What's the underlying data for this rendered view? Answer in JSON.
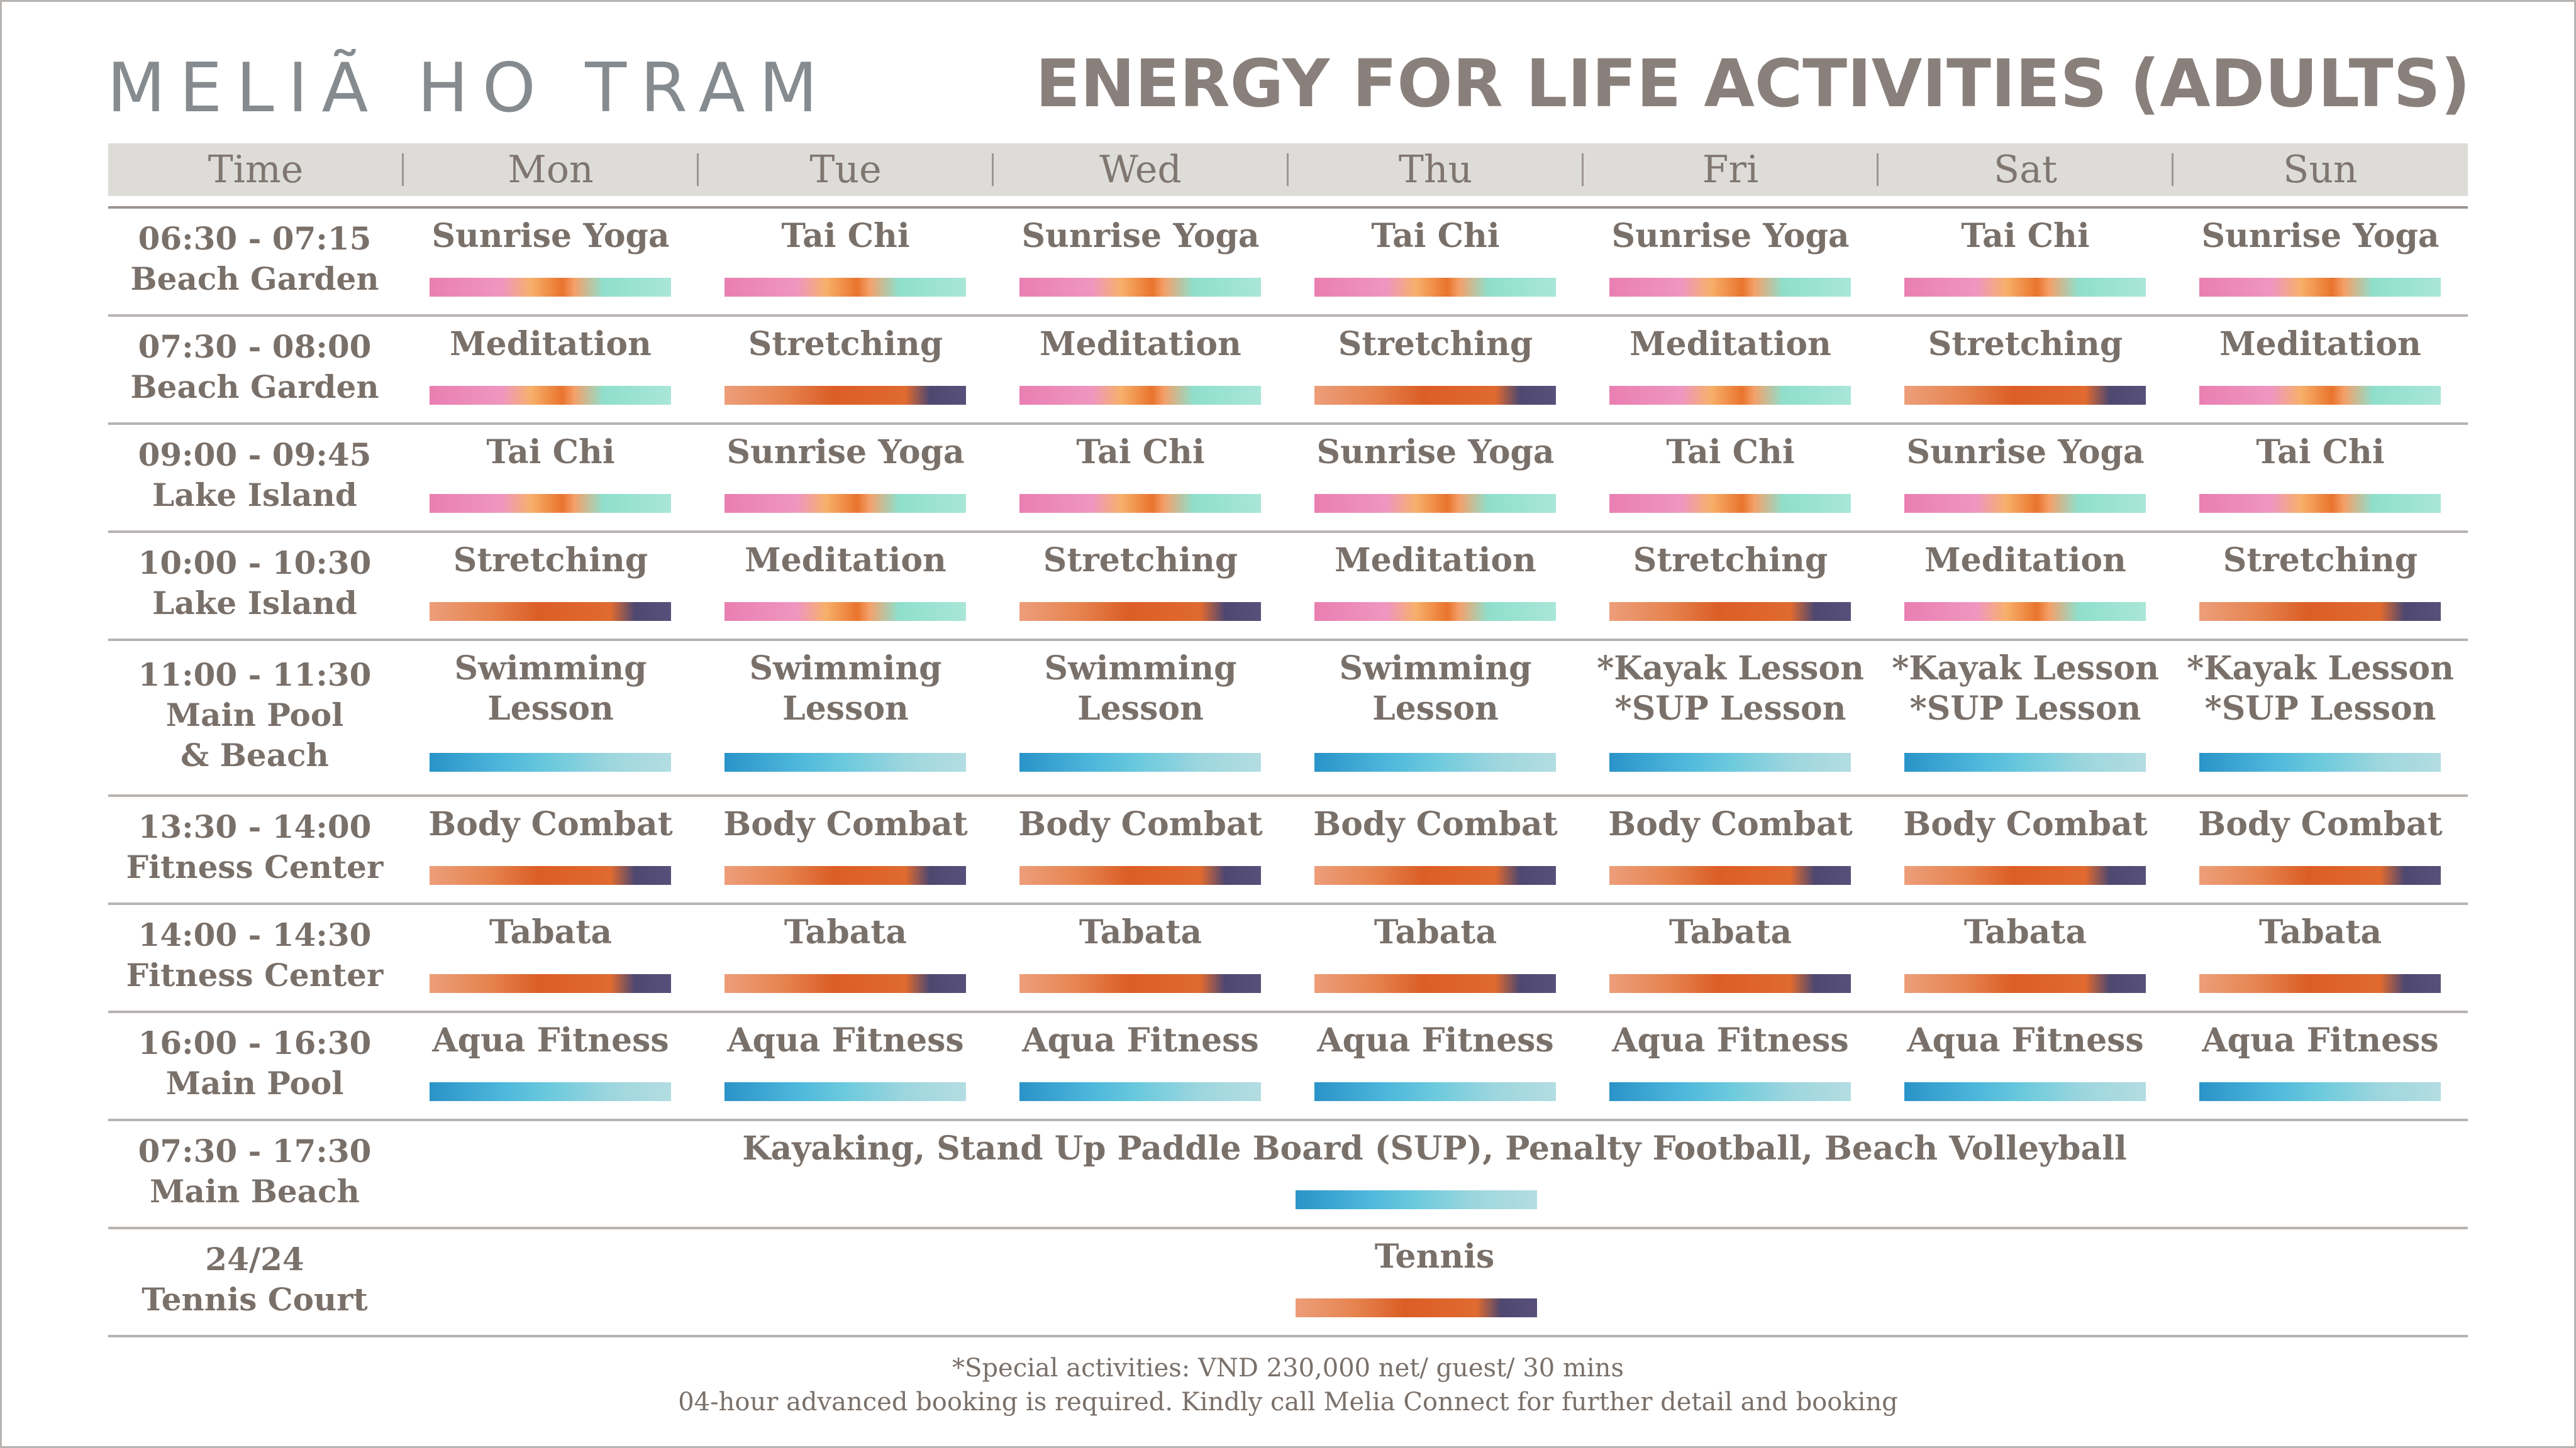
{
  "logo": "MELIÃ HO TRAM",
  "title": "ENERGY FOR LIFE ACTIVITIES (ADULTS)",
  "headers": [
    "Time",
    "Mon",
    "Tue",
    "Wed",
    "Thu",
    "Fri",
    "Sat",
    "Sun"
  ],
  "rows": [
    {
      "time": [
        "06:30 - 07:15",
        "Beach Garden"
      ],
      "cells": [
        [
          "Sunrise Yoga"
        ],
        [
          "Tai Chi"
        ],
        [
          "Sunrise Yoga"
        ],
        [
          "Tai Chi"
        ],
        [
          "Sunrise Yoga"
        ],
        [
          "Tai Chi"
        ],
        [
          "Sunrise Yoga"
        ]
      ],
      "bars": [
        "zen",
        "zen",
        "zen",
        "zen",
        "zen",
        "zen",
        "zen"
      ]
    },
    {
      "time": [
        "07:30 - 08:00",
        "Beach Garden"
      ],
      "cells": [
        [
          "Meditation"
        ],
        [
          "Stretching"
        ],
        [
          "Meditation"
        ],
        [
          "Stretching"
        ],
        [
          "Meditation"
        ],
        [
          "Stretching"
        ],
        [
          "Meditation"
        ]
      ],
      "bars": [
        "zen",
        "fire",
        "zen",
        "fire",
        "zen",
        "fire",
        "zen"
      ]
    },
    {
      "time": [
        "09:00 - 09:45",
        "Lake Island"
      ],
      "cells": [
        [
          "Tai Chi"
        ],
        [
          "Sunrise Yoga"
        ],
        [
          "Tai Chi"
        ],
        [
          "Sunrise Yoga"
        ],
        [
          "Tai Chi"
        ],
        [
          "Sunrise Yoga"
        ],
        [
          "Tai Chi"
        ]
      ],
      "bars": [
        "zen",
        "zen",
        "zen",
        "zen",
        "zen",
        "zen",
        "zen"
      ]
    },
    {
      "time": [
        "10:00 - 10:30",
        "Lake Island"
      ],
      "cells": [
        [
          "Stretching"
        ],
        [
          "Meditation"
        ],
        [
          "Stretching"
        ],
        [
          "Meditation"
        ],
        [
          "Stretching"
        ],
        [
          "Meditation"
        ],
        [
          "Stretching"
        ]
      ],
      "bars": [
        "fire",
        "zen",
        "fire",
        "zen",
        "fire",
        "zen",
        "fire"
      ]
    },
    {
      "time": [
        "11:00 - 11:30",
        "Main Pool",
        "& Beach"
      ],
      "cells": [
        [
          "Swimming",
          "Lesson"
        ],
        [
          "Swimming",
          "Lesson"
        ],
        [
          "Swimming",
          "Lesson"
        ],
        [
          "Swimming",
          "Lesson"
        ],
        [
          "*Kayak Lesson",
          "*SUP Lesson"
        ],
        [
          "*Kayak Lesson",
          "*SUP Lesson"
        ],
        [
          "*Kayak Lesson",
          "*SUP Lesson"
        ]
      ],
      "bars": [
        "water",
        "water",
        "water",
        "water",
        "water",
        "water",
        "water"
      ]
    },
    {
      "time": [
        "13:30 - 14:00",
        "Fitness Center"
      ],
      "cells": [
        [
          "Body Combat"
        ],
        [
          "Body Combat"
        ],
        [
          "Body Combat"
        ],
        [
          "Body Combat"
        ],
        [
          "Body Combat"
        ],
        [
          "Body Combat"
        ],
        [
          "Body Combat"
        ]
      ],
      "bars": [
        "fire",
        "fire",
        "fire",
        "fire",
        "fire",
        "fire",
        "fire"
      ]
    },
    {
      "time": [
        "14:00 - 14:30",
        "Fitness Center"
      ],
      "cells": [
        [
          "Tabata"
        ],
        [
          "Tabata"
        ],
        [
          "Tabata"
        ],
        [
          "Tabata"
        ],
        [
          "Tabata"
        ],
        [
          "Tabata"
        ],
        [
          "Tabata"
        ]
      ],
      "bars": [
        "fire",
        "fire",
        "fire",
        "fire",
        "fire",
        "fire",
        "fire"
      ]
    },
    {
      "time": [
        "16:00 - 16:30",
        "Main Pool"
      ],
      "cells": [
        [
          "Aqua Fitness"
        ],
        [
          "Aqua Fitness"
        ],
        [
          "Aqua Fitness"
        ],
        [
          "Aqua Fitness"
        ],
        [
          "Aqua Fitness"
        ],
        [
          "Aqua Fitness"
        ],
        [
          "Aqua Fitness"
        ]
      ],
      "bars": [
        "water",
        "water",
        "water",
        "water",
        "water",
        "water",
        "water"
      ]
    }
  ],
  "wide_rows": [
    {
      "time": [
        "07:30 - 17:30",
        "Main Beach"
      ],
      "text": "Kayaking, Stand Up Paddle Board (SUP), Penalty Football, Beach Volleyball",
      "bar": "water"
    },
    {
      "time": [
        "24/24",
        "Tennis Court"
      ],
      "text": "Tennis",
      "bar": "fire"
    }
  ],
  "footer": [
    "*Special activities: VND 230,000 net/ guest/ 30 mins",
    "04-hour advanced booking is required. Kindly call Melia Connect for further detail and booking"
  ],
  "colors": {
    "bar_zen": "#ef96c0",
    "bar_fire": "#db5e26",
    "bar_water": "#4db7dc",
    "header_bg": "#dedcd9"
  }
}
